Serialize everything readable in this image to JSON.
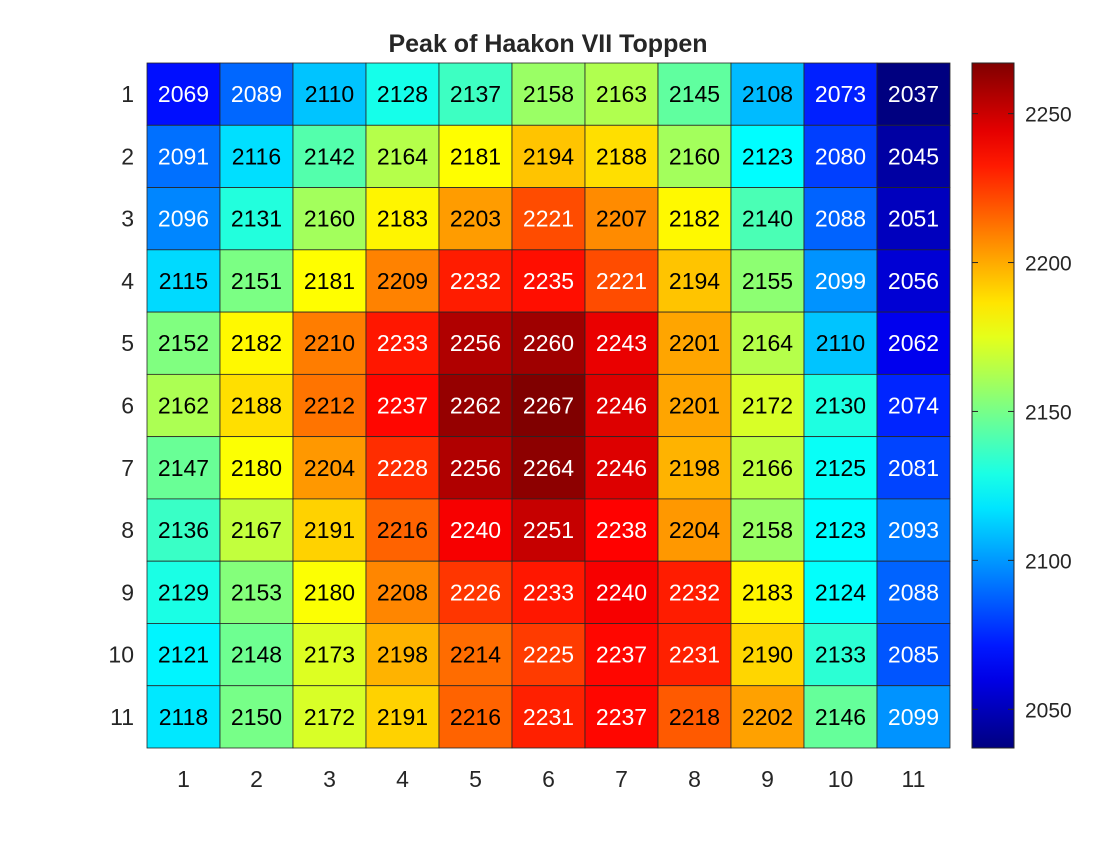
{
  "chart_data": {
    "type": "heatmap",
    "title": "Peak of Haakon VII Toppen",
    "xlabel": "",
    "ylabel": "",
    "x_tick_labels": [
      "1",
      "2",
      "3",
      "4",
      "5",
      "6",
      "7",
      "8",
      "9",
      "10",
      "11"
    ],
    "y_tick_labels": [
      "1",
      "2",
      "3",
      "4",
      "5",
      "6",
      "7",
      "8",
      "9",
      "10",
      "11"
    ],
    "values": [
      [
        2069,
        2089,
        2110,
        2128,
        2137,
        2158,
        2163,
        2145,
        2108,
        2073,
        2037
      ],
      [
        2091,
        2116,
        2142,
        2164,
        2181,
        2194,
        2188,
        2160,
        2123,
        2080,
        2045
      ],
      [
        2096,
        2131,
        2160,
        2183,
        2203,
        2221,
        2207,
        2182,
        2140,
        2088,
        2051
      ],
      [
        2115,
        2151,
        2181,
        2209,
        2232,
        2235,
        2221,
        2194,
        2155,
        2099,
        2056
      ],
      [
        2152,
        2182,
        2210,
        2233,
        2256,
        2260,
        2243,
        2201,
        2164,
        2110,
        2062
      ],
      [
        2162,
        2188,
        2212,
        2237,
        2262,
        2267,
        2246,
        2201,
        2172,
        2130,
        2074
      ],
      [
        2147,
        2180,
        2204,
        2228,
        2256,
        2264,
        2246,
        2198,
        2166,
        2125,
        2081
      ],
      [
        2136,
        2167,
        2191,
        2216,
        2240,
        2251,
        2238,
        2204,
        2158,
        2123,
        2093
      ],
      [
        2129,
        2153,
        2180,
        2208,
        2226,
        2233,
        2240,
        2232,
        2183,
        2124,
        2088
      ],
      [
        2121,
        2148,
        2173,
        2198,
        2214,
        2225,
        2237,
        2231,
        2190,
        2133,
        2085
      ],
      [
        2118,
        2150,
        2172,
        2191,
        2216,
        2231,
        2237,
        2218,
        2202,
        2146,
        2099
      ]
    ],
    "colormap": "jet",
    "clim": [
      2037,
      2267
    ],
    "colorbar": {
      "ticks": [
        2050,
        2100,
        2150,
        2200,
        2250
      ],
      "tick_labels": [
        "2050",
        "2100",
        "2150",
        "2200",
        "2250"
      ],
      "placement": "right"
    },
    "grid": false,
    "cell_labels": true
  }
}
